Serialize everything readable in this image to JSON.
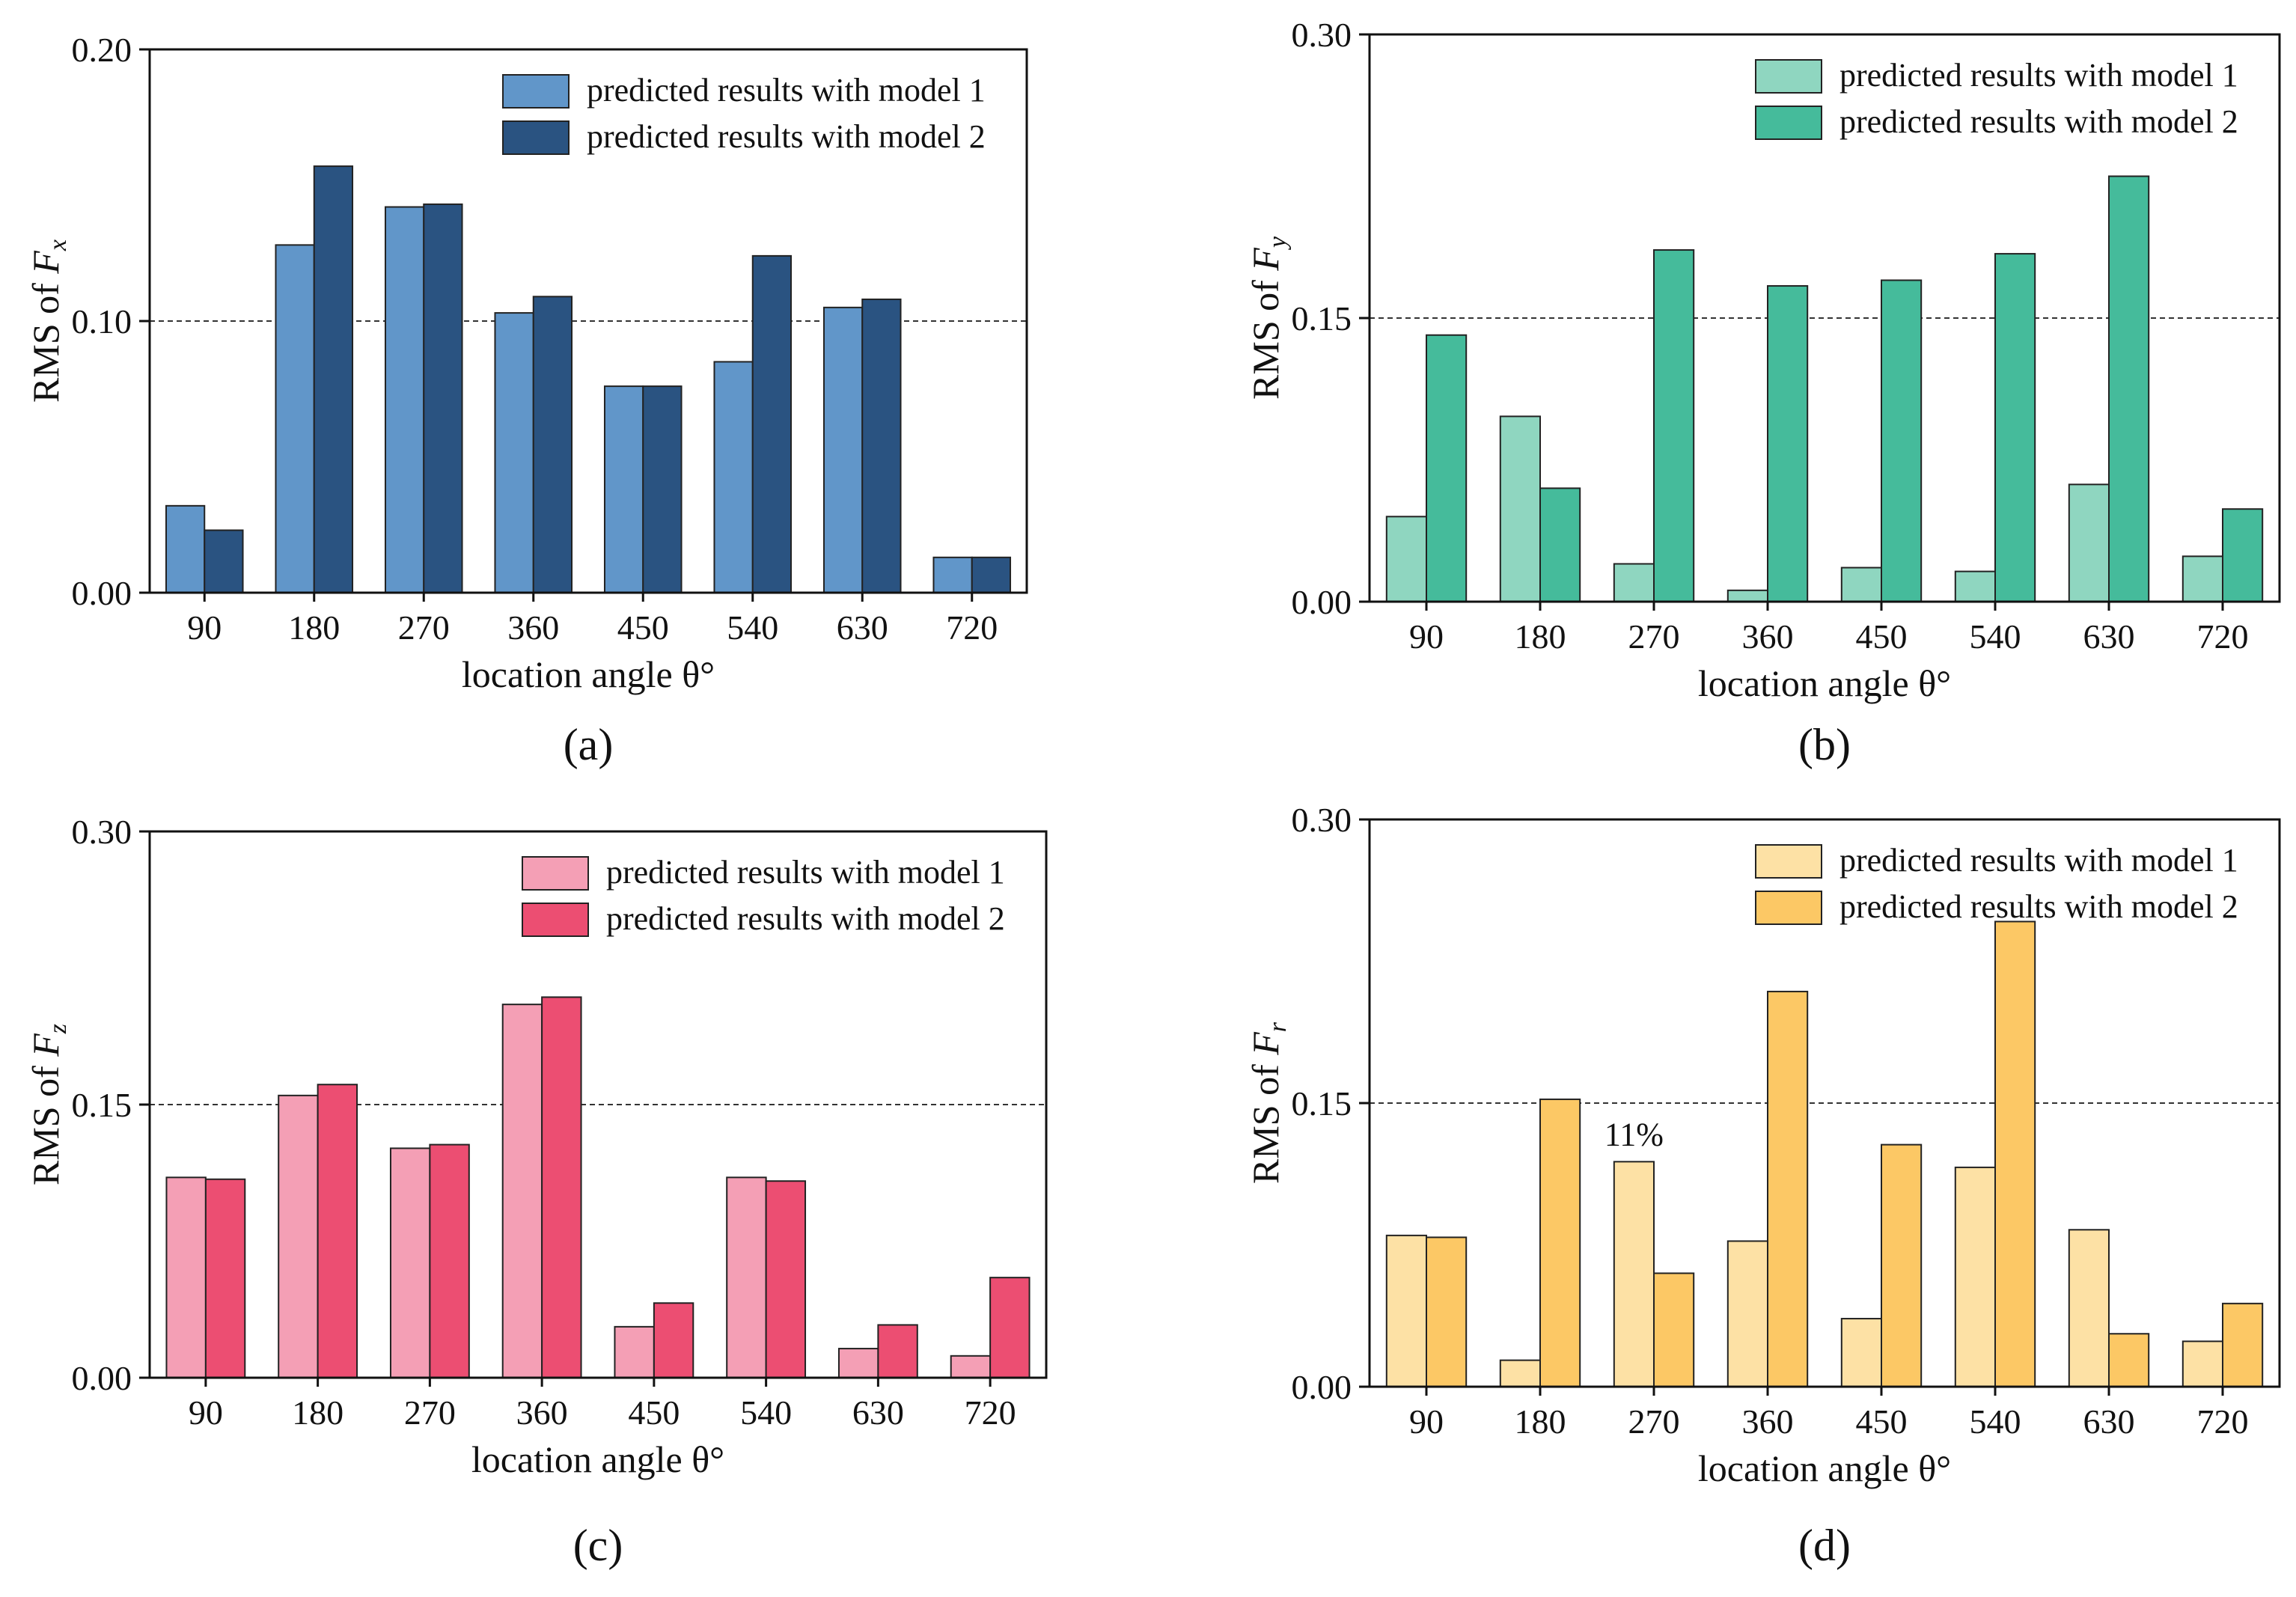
{
  "chart_data": [
    {
      "type": "bar",
      "panel_label": "(a)",
      "title": "",
      "xlabel": "location angle θ°",
      "ylabel_prefix": "RMS of",
      "ylabel_var": "F",
      "ylabel_sub": "x",
      "categories": [
        "90",
        "180",
        "270",
        "360",
        "450",
        "540",
        "630",
        "720"
      ],
      "ylim": [
        0,
        0.2
      ],
      "yticks": [
        "0.00",
        "0.10",
        "0.20"
      ],
      "yticks_values": [
        0,
        0.1,
        0.2
      ],
      "reference_line": 0.1,
      "annotations": [],
      "colors": [
        "#6196c9",
        "#2a5381"
      ],
      "series": [
        {
          "name": "predicted results with model 1",
          "values": [
            0.032,
            0.128,
            0.142,
            0.103,
            0.076,
            0.085,
            0.105,
            0.013
          ]
        },
        {
          "name": "predicted results with model 2",
          "values": [
            0.023,
            0.157,
            0.143,
            0.109,
            0.076,
            0.124,
            0.108,
            0.013
          ]
        }
      ],
      "legend": "top-right"
    },
    {
      "type": "bar",
      "panel_label": "(b)",
      "title": "",
      "xlabel": "location angle θ°",
      "ylabel_prefix": "RMS of",
      "ylabel_var": "F",
      "ylabel_sub": "y",
      "categories": [
        "90",
        "180",
        "270",
        "360",
        "450",
        "540",
        "630",
        "720"
      ],
      "ylim": [
        0,
        0.3
      ],
      "yticks": [
        "0.00",
        "0.15",
        "0.30"
      ],
      "yticks_values": [
        0,
        0.15,
        0.3
      ],
      "reference_line": 0.15,
      "annotations": [],
      "colors": [
        "#8fd6c0",
        "#45bb9b"
      ],
      "series": [
        {
          "name": "predicted results with model 1",
          "values": [
            0.045,
            0.098,
            0.02,
            0.006,
            0.018,
            0.016,
            0.062,
            0.024
          ]
        },
        {
          "name": "predicted results with model 2",
          "values": [
            0.141,
            0.06,
            0.186,
            0.167,
            0.17,
            0.184,
            0.225,
            0.049
          ]
        }
      ],
      "legend": "top-right"
    },
    {
      "type": "bar",
      "panel_label": "(c)",
      "title": "",
      "xlabel": "location angle θ°",
      "ylabel_prefix": "RMS of",
      "ylabel_var": "F",
      "ylabel_sub": "z",
      "categories": [
        "90",
        "180",
        "270",
        "360",
        "450",
        "540",
        "630",
        "720"
      ],
      "ylim": [
        0,
        0.3
      ],
      "yticks": [
        "0.00",
        "0.15",
        "0.30"
      ],
      "yticks_values": [
        0,
        0.15,
        0.3
      ],
      "reference_line": 0.15,
      "annotations": [],
      "colors": [
        "#f49fb5",
        "#ec4e72"
      ],
      "series": [
        {
          "name": "predicted results with model 1",
          "values": [
            0.11,
            0.155,
            0.126,
            0.205,
            0.028,
            0.11,
            0.016,
            0.012
          ]
        },
        {
          "name": "predicted results with model 2",
          "values": [
            0.109,
            0.161,
            0.128,
            0.209,
            0.041,
            0.108,
            0.029,
            0.055
          ]
        }
      ],
      "legend": "top-right"
    },
    {
      "type": "bar",
      "panel_label": "(d)",
      "title": "",
      "xlabel": "location angle θ°",
      "ylabel_prefix": "RMS of",
      "ylabel_var": "F",
      "ylabel_sub": "r",
      "categories": [
        "90",
        "180",
        "270",
        "360",
        "450",
        "540",
        "630",
        "720"
      ],
      "ylim": [
        0,
        0.3
      ],
      "yticks": [
        "0.00",
        "0.15",
        "0.30"
      ],
      "yticks_values": [
        0,
        0.15,
        0.3
      ],
      "reference_line": 0.15,
      "annotations": [
        {
          "text": "11%",
          "category": "270"
        }
      ],
      "colors": [
        "#fde1a5",
        "#fcc865"
      ],
      "series": [
        {
          "name": "predicted results with model 1",
          "values": [
            0.08,
            0.014,
            0.119,
            0.077,
            0.036,
            0.116,
            0.083,
            0.024
          ]
        },
        {
          "name": "predicted results with model 2",
          "values": [
            0.079,
            0.152,
            0.06,
            0.209,
            0.128,
            0.246,
            0.028,
            0.044
          ]
        }
      ],
      "legend": "top-right"
    }
  ]
}
